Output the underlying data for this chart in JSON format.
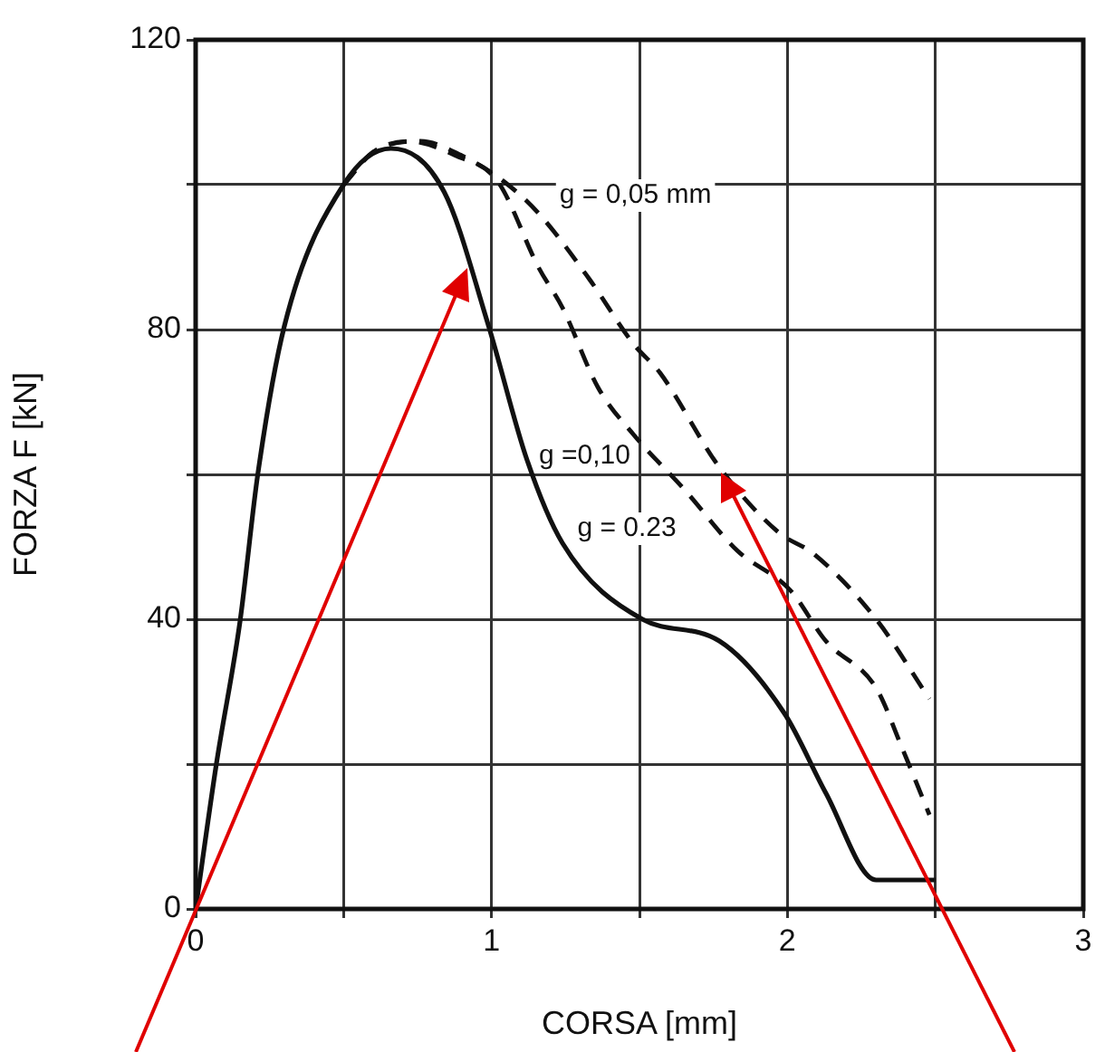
{
  "chart_data": {
    "type": "line",
    "xlabel": "CORSA [mm]",
    "ylabel": "FORZA F [kN]",
    "xlim": [
      0,
      3
    ],
    "xticks": [
      0,
      {
        "value": 0.5,
        "label": null
      },
      1,
      {
        "value": 1.5,
        "label": null
      },
      2,
      {
        "value": 2.5,
        "label": null
      },
      3
    ],
    "ylim": [
      0,
      120
    ],
    "yticks": [
      0,
      {
        "value": 20,
        "label": null
      },
      40,
      {
        "value": 60,
        "label": null
      },
      80,
      {
        "value": 100,
        "label": null
      },
      120
    ],
    "grid": true,
    "legend": false,
    "marker": "none",
    "series": [
      {
        "name": "g = 0,05 mm",
        "color": "#111111",
        "line_style": "dashed",
        "x": [
          0.5,
          0.6,
          0.76,
          0.9,
          1.04,
          1.16,
          1.33,
          1.48,
          1.57,
          1.77,
          1.97,
          2.09,
          2.3,
          2.48
        ],
        "values": [
          100,
          104.5,
          106,
          104,
          100.5,
          96,
          87,
          78,
          74,
          61,
          52,
          49,
          40,
          29
        ]
      },
      {
        "name": "g =0,10",
        "color": "#111111",
        "line_style": "dashed",
        "x": [
          0.5,
          0.6,
          0.72,
          0.88,
          1.02,
          1.16,
          1.24,
          1.36,
          1.48,
          1.65,
          1.83,
          2.01,
          2.13,
          2.3,
          2.39,
          2.48
        ],
        "values": [
          100,
          104.5,
          106,
          104,
          100.5,
          88.5,
          83,
          72,
          65.5,
          58,
          49.5,
          44,
          37,
          30.5,
          22,
          13
        ]
      },
      {
        "name": "g = 0.23",
        "color": "#111111",
        "line_style": "solid",
        "x": [
          0,
          0.07,
          0.15,
          0.21,
          0.3,
          0.5,
          0.66,
          0.84,
          0.99,
          1.12,
          1.24,
          1.51,
          1.77,
          1.99,
          2.13,
          2.3,
          2.5
        ],
        "values": [
          0,
          20,
          39.7,
          60,
          80.5,
          100,
          105,
          99,
          80.5,
          62,
          50.5,
          40,
          37,
          27,
          16,
          4,
          4
        ]
      }
    ]
  }
}
